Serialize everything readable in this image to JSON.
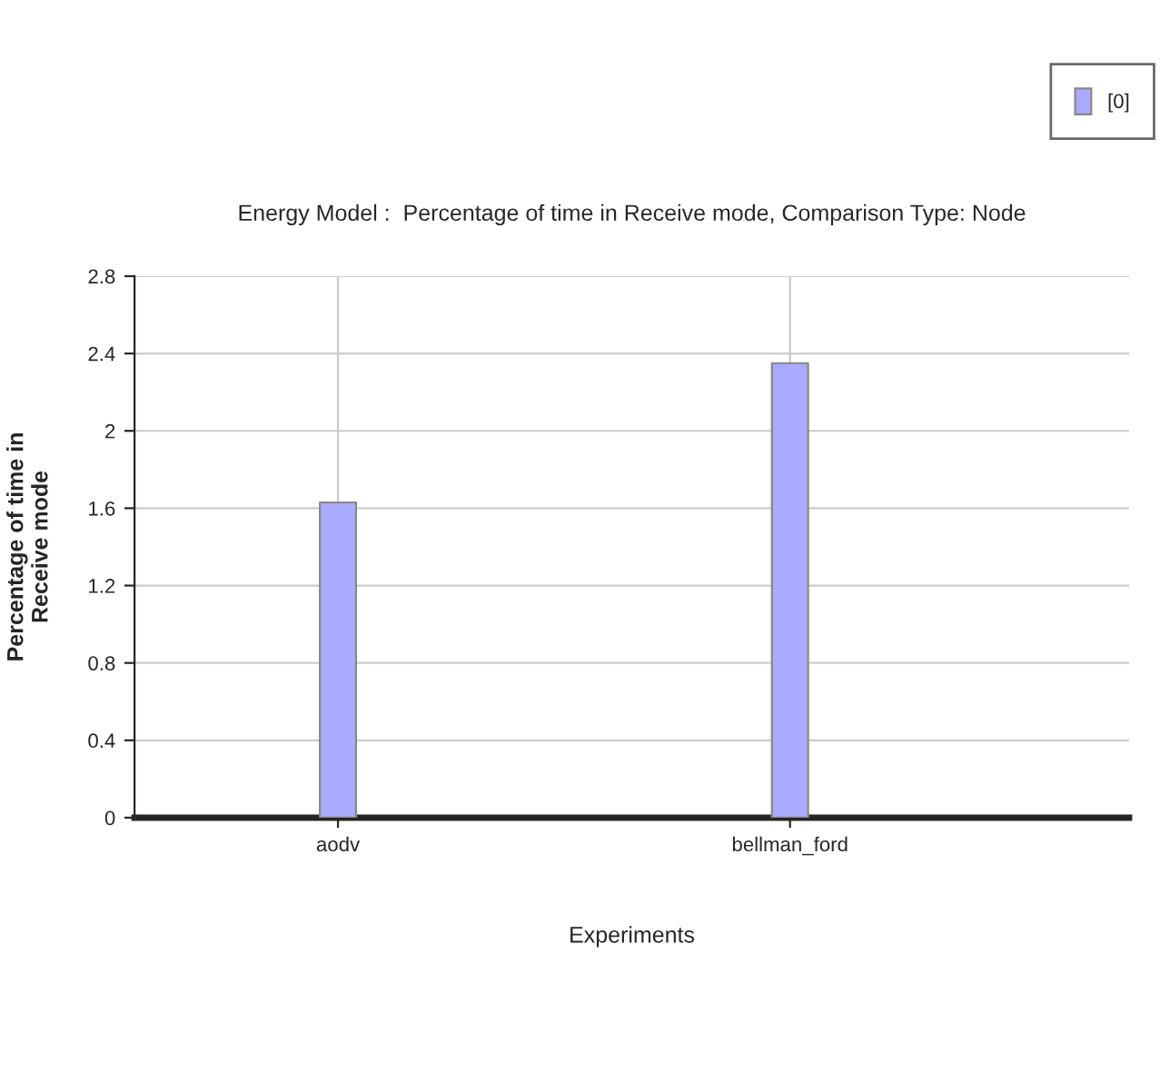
{
  "chart_data": {
    "type": "bar",
    "title": "Energy Model :  Percentage of time in Receive mode, Comparison Type: Node",
    "xlabel": "Experiments",
    "ylabel": "Percentage of time in\nReceive mode",
    "categories": [
      "aodv",
      "bellman_ford"
    ],
    "series": [
      {
        "name": "[0]",
        "color": "#aaaaff",
        "values": [
          1.63,
          2.35
        ]
      }
    ],
    "ylim": [
      0,
      2.8
    ],
    "yticks": [
      0,
      0.4,
      0.8,
      1.2,
      1.6,
      2,
      2.4,
      2.8
    ],
    "grid": true,
    "legend": "top right"
  }
}
